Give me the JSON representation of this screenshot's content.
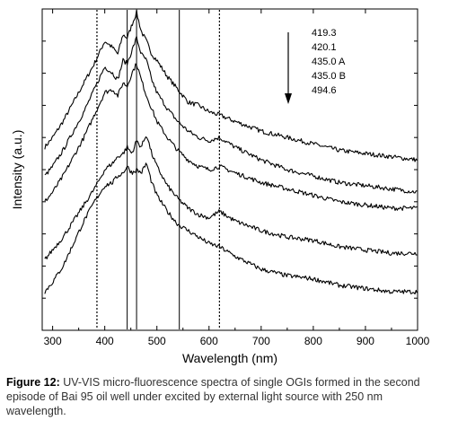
{
  "caption": {
    "label": "Figure 12:",
    "text": " UV-VIS micro-fluorescence spectra of single OGIs formed in the second episode of Bai 95 oil well under excited by external light source with 250 nm wavelength."
  },
  "chart_data": {
    "type": "line",
    "title": "",
    "xlabel": "Wavelength (nm)",
    "ylabel": "Intensity (a.u.)",
    "xlim": [
      280,
      1000
    ],
    "ylim": [
      0,
      100
    ],
    "xticks": [
      300,
      400,
      500,
      600,
      700,
      800,
      900,
      1000
    ],
    "y_ticks_labeled": false,
    "grid": false,
    "legend_position": "top-right",
    "legend_entries": [
      "419.3",
      "420.1",
      "435.0 A",
      "435.0 B",
      "494.6"
    ],
    "legend_arrow_direction": "down",
    "reference_lines_nm": [
      385,
      443,
      461,
      543,
      620
    ],
    "reference_line_styles": [
      "dotted",
      "solid",
      "solid",
      "solid",
      "dotted"
    ],
    "series_color": "#000000",
    "series": [
      {
        "name": "419.3",
        "x": [
          285,
          300,
          320,
          340,
          360,
          380,
          400,
          415,
          425,
          435,
          443,
          452,
          461,
          470,
          480,
          490,
          500,
          520,
          540,
          560,
          580,
          600,
          620,
          650,
          700,
          750,
          800,
          850,
          900,
          950,
          1000
        ],
        "y": [
          57,
          60,
          65,
          71,
          77,
          83,
          90,
          88,
          86,
          92,
          91,
          95,
          99,
          93,
          90,
          86,
          84,
          79,
          75,
          71,
          70,
          68,
          67,
          65,
          62,
          60,
          58,
          56,
          55,
          54,
          53
        ]
      },
      {
        "name": "420.1",
        "x": [
          285,
          300,
          320,
          340,
          360,
          380,
          400,
          415,
          425,
          435,
          443,
          452,
          461,
          470,
          480,
          490,
          500,
          520,
          540,
          560,
          580,
          600,
          620,
          650,
          700,
          750,
          800,
          850,
          900,
          950,
          1000
        ],
        "y": [
          48,
          51,
          56,
          62,
          68,
          75,
          82,
          80,
          78,
          84,
          83,
          87,
          91,
          86,
          84,
          78,
          74,
          69,
          65,
          62,
          60,
          59,
          60,
          57,
          53,
          50,
          48,
          46,
          45,
          44,
          43
        ]
      },
      {
        "name": "435.0 A",
        "x": [
          285,
          300,
          320,
          340,
          360,
          380,
          400,
          415,
          425,
          435,
          443,
          452,
          461,
          470,
          480,
          490,
          500,
          520,
          540,
          560,
          580,
          600,
          620,
          650,
          700,
          750,
          800,
          850,
          900,
          950,
          1000
        ],
        "y": [
          40,
          43,
          48,
          54,
          60,
          67,
          74,
          75,
          73,
          77,
          76,
          80,
          83,
          78,
          73,
          69,
          65,
          60,
          56,
          53,
          51,
          50,
          51,
          49,
          46,
          44,
          42,
          40,
          39,
          38,
          38
        ]
      },
      {
        "name": "435.0 B",
        "x": [
          285,
          300,
          320,
          340,
          360,
          380,
          400,
          415,
          425,
          435,
          443,
          452,
          461,
          470,
          480,
          490,
          500,
          520,
          540,
          560,
          580,
          600,
          620,
          650,
          700,
          750,
          800,
          850,
          900,
          950,
          1000
        ],
        "y": [
          22,
          25,
          29,
          34,
          39,
          44,
          50,
          52,
          54,
          55,
          57,
          55,
          59,
          57,
          61,
          55,
          51,
          45,
          41,
          38,
          36,
          35,
          37,
          34,
          31,
          29,
          28,
          26,
          25,
          24,
          24
        ]
      },
      {
        "name": "494.6",
        "x": [
          285,
          300,
          320,
          340,
          360,
          380,
          400,
          415,
          425,
          435,
          443,
          452,
          461,
          470,
          480,
          490,
          500,
          520,
          540,
          560,
          580,
          600,
          620,
          650,
          700,
          750,
          800,
          850,
          900,
          950,
          1000
        ],
        "y": [
          12,
          15,
          20,
          27,
          34,
          40,
          45,
          46,
          48,
          49,
          51,
          49,
          50,
          49,
          52,
          46,
          42,
          37,
          33,
          31,
          29,
          27,
          26,
          23,
          19,
          17,
          16,
          14,
          13,
          12,
          12
        ]
      }
    ]
  }
}
